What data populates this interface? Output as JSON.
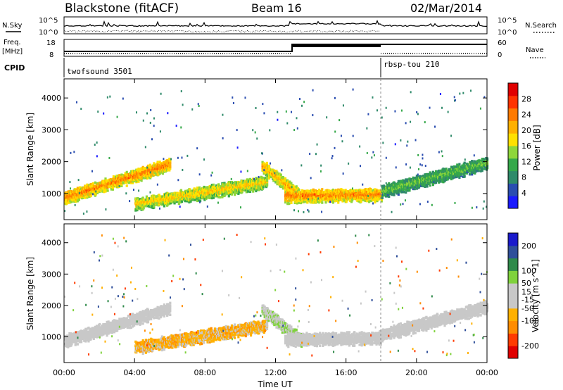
{
  "header": {
    "station": "Blackstone (fitACF)",
    "beam": "Beam 16",
    "date": "02/Mar/2014"
  },
  "top_panels": {
    "nsky_label": "N.Sky",
    "nsearch_label": "N.Search",
    "scale_hi": "10^5",
    "scale_lo": "10^0",
    "freq_label": "Freq.",
    "freq_unit": "[MHz]",
    "freq_top": "18",
    "freq_bottom": "8",
    "nave_label": "Nave",
    "nave_top": "60",
    "nave_bottom": "0",
    "cpid_label": "CPID",
    "cpid_1": "twofsound 3501",
    "cpid_2": "rbsp-tou 210"
  },
  "colors": {
    "power_scale": [
      "#1a1aff",
      "#2a4db0",
      "#2f8a6a",
      "#35a84a",
      "#8ed63a",
      "#ffe000",
      "#ffb000",
      "#ff7a00",
      "#ff3300",
      "#e00000"
    ],
    "velocity_scale": [
      "#e00000",
      "#ff3b00",
      "#ff8c00",
      "#ffb000",
      "#c8c8c8",
      "#c8c8c8",
      "#7fd23c",
      "#2f8a4a",
      "#2f4f9a",
      "#1a1acc"
    ]
  },
  "chart_data": [
    {
      "type": "heatmap",
      "title": "",
      "xlabel": "",
      "ylabel": "Slant Range [km]",
      "x_ticks": [
        "00:00",
        "04:00",
        "08:00",
        "12:00",
        "16:00",
        "20:00",
        "00:00"
      ],
      "y_ticks": [
        1000,
        2000,
        3000,
        4000
      ],
      "xlim_hours": [
        0,
        24
      ],
      "ylim_km": [
        180,
        4600
      ],
      "colorbar": {
        "label": "Power [dB]",
        "ticks": [
          4,
          8,
          12,
          16,
          20,
          24,
          28
        ],
        "range": [
          0,
          32
        ],
        "position": "right"
      },
      "echo_bands": [
        {
          "t_start_h": 0.0,
          "t_end_h": 6.0,
          "range_start_km": 900,
          "range_end_km": 1950,
          "typical_power_db": 22
        },
        {
          "t_start_h": 4.0,
          "t_end_h": 11.5,
          "range_start_km": 700,
          "range_end_km": 1400,
          "typical_power_db": 18
        },
        {
          "t_start_h": 11.2,
          "t_end_h": 13.5,
          "range_start_km": 1900,
          "range_end_km": 900,
          "typical_power_db": 20
        },
        {
          "t_start_h": 12.5,
          "t_end_h": 18.0,
          "range_start_km": 950,
          "range_end_km": 1000,
          "typical_power_db": 22
        },
        {
          "t_start_h": 18.0,
          "t_end_h": 24.0,
          "range_start_km": 1100,
          "range_end_km": 2000,
          "typical_power_db": 12
        }
      ]
    },
    {
      "type": "heatmap",
      "title": "",
      "xlabel": "Time UT",
      "ylabel": "Slant Range [km]",
      "x_ticks": [
        "00:00",
        "04:00",
        "08:00",
        "12:00",
        "16:00",
        "20:00",
        "00:00"
      ],
      "y_ticks": [
        1000,
        2000,
        3000,
        4000
      ],
      "xlim_hours": [
        0,
        24
      ],
      "ylim_km": [
        180,
        4600
      ],
      "colorbar": {
        "label": "Velocity [m s^-1]",
        "ticks": [
          200,
          100,
          50,
          15,
          -15,
          -50,
          -100,
          -200
        ],
        "range": [
          -250,
          250
        ],
        "position": "right"
      },
      "echo_bands": [
        {
          "t_start_h": 0.0,
          "t_end_h": 6.0,
          "range_start_km": 900,
          "range_end_km": 1950,
          "typical_velocity_ms": 0
        },
        {
          "t_start_h": 4.0,
          "t_end_h": 11.5,
          "range_start_km": 700,
          "range_end_km": 1400,
          "typical_velocity_ms": -70
        },
        {
          "t_start_h": 11.2,
          "t_end_h": 13.5,
          "range_start_km": 1900,
          "range_end_km": 900,
          "typical_velocity_ms": 40
        },
        {
          "t_start_h": 12.5,
          "t_end_h": 18.0,
          "range_start_km": 950,
          "range_end_km": 1000,
          "typical_velocity_ms": 0
        },
        {
          "t_start_h": 18.0,
          "t_end_h": 24.0,
          "range_start_km": 1100,
          "range_end_km": 2000,
          "typical_velocity_ms": 0
        }
      ]
    }
  ]
}
